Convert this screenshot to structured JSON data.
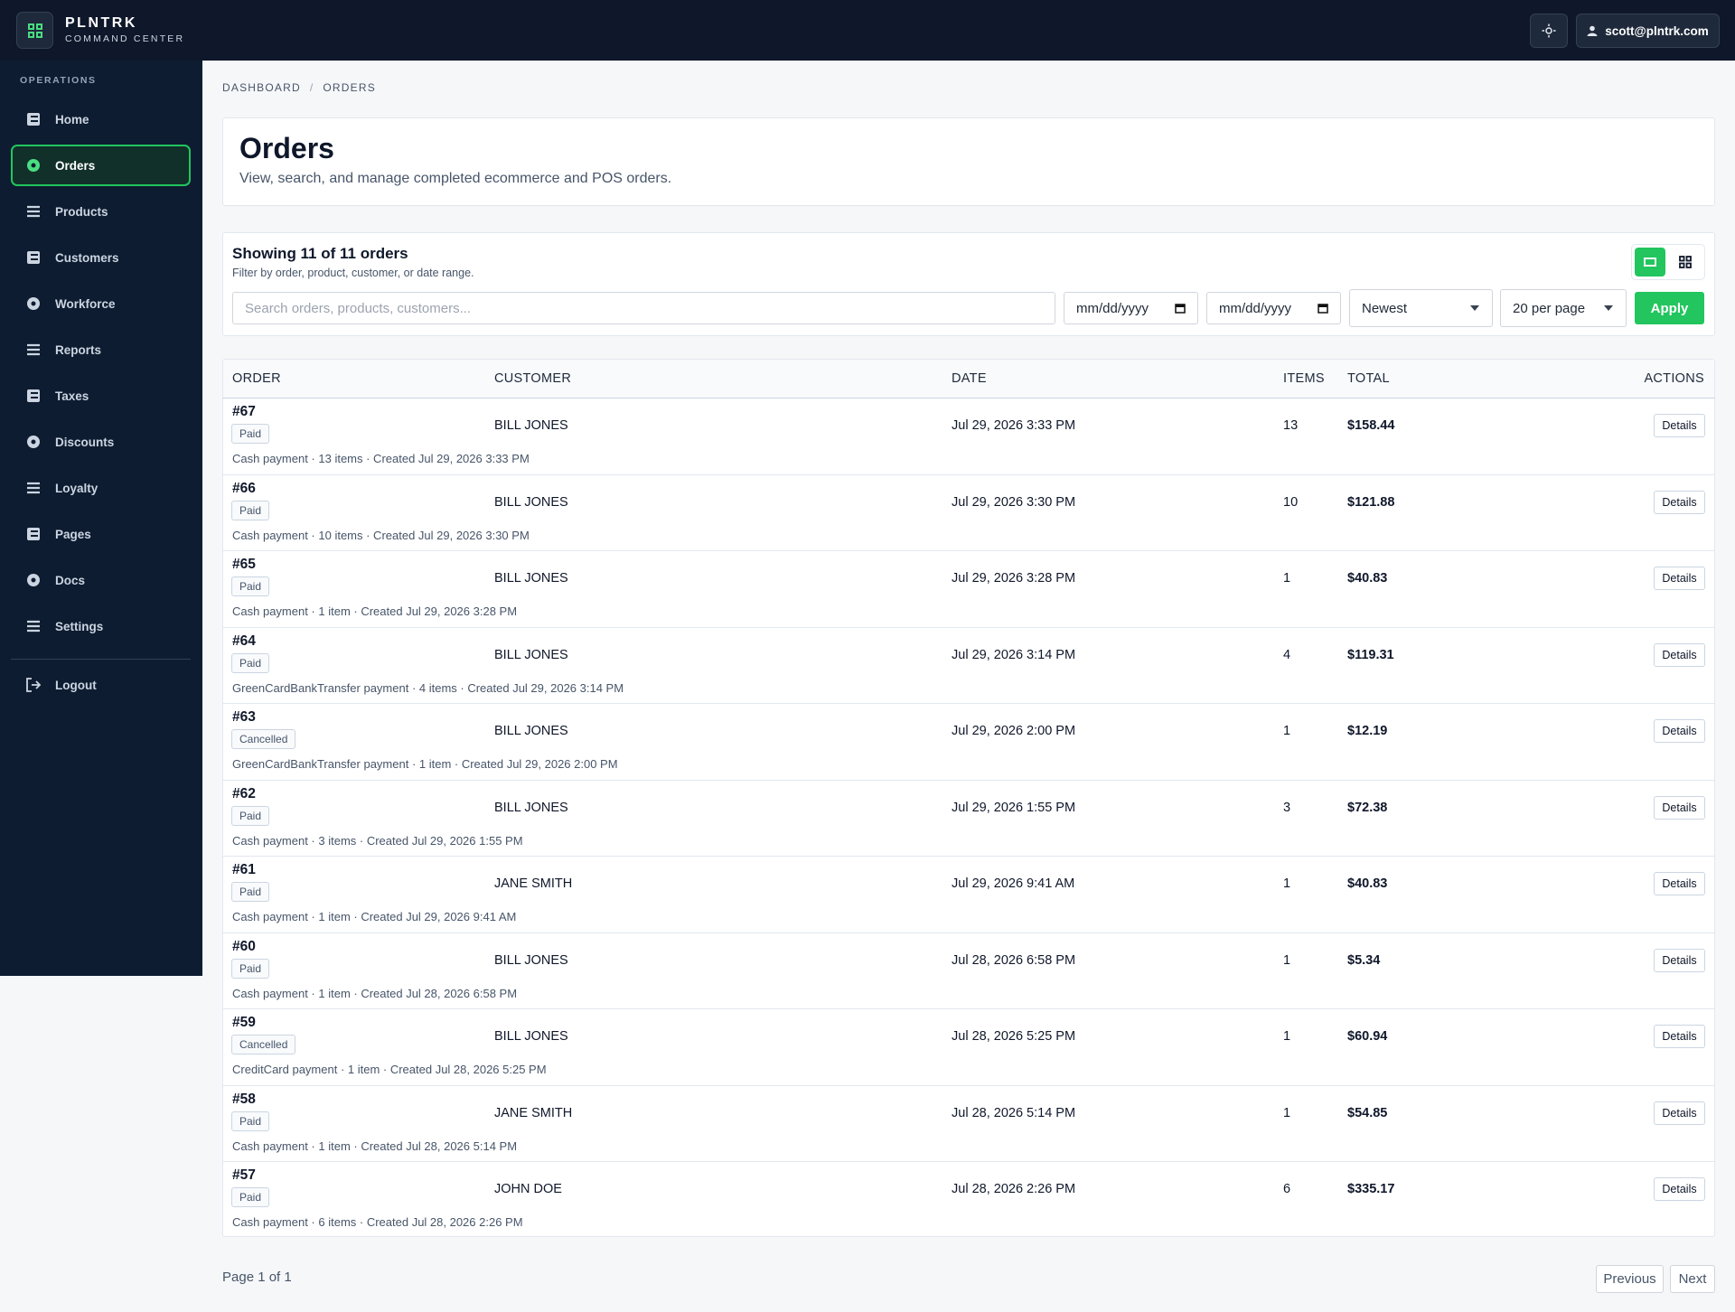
{
  "brand": {
    "name": "PLNTRK",
    "tagline": "COMMAND CENTER"
  },
  "user": "scott@plntrk.com",
  "nav": {
    "section": "OPERATIONS",
    "items": [
      "Home",
      "Orders",
      "Products",
      "Customers",
      "Workforce",
      "Reports",
      "Taxes",
      "Discounts",
      "Loyalty",
      "Pages",
      "Docs",
      "Settings"
    ],
    "logout": "Logout"
  },
  "breadcrumb": {
    "items": [
      "DASHBOARD",
      "ORDERS"
    ],
    "separator": "/"
  },
  "page": {
    "title": "Orders",
    "subtitle": "View, search, and manage completed ecommerce and POS orders."
  },
  "filters": {
    "summary": "Showing 11 of 11 orders",
    "hint": "Filter by order, product, customer, or date range.",
    "search_placeholder": "Search orders, products, customers...",
    "date_from": "mm/dd/yyyy",
    "date_to": "mm/dd/yyyy",
    "sort": "Newest",
    "per_page": "20 per page",
    "apply": "Apply"
  },
  "table": {
    "columns": [
      "ORDER",
      "CUSTOMER",
      "DATE",
      "ITEMS",
      "TOTAL",
      "ACTIONS"
    ],
    "rows": [
      {
        "order": "#67",
        "status": "Paid",
        "customer": "BILL JONES",
        "date": "Jul 29, 2026 3:33 PM",
        "items": 13,
        "total": "$158.44",
        "meta": "Cash payment · 13 items · Created Jul 29, 2026 3:33 PM",
        "action": "Details"
      },
      {
        "order": "#66",
        "status": "Paid",
        "customer": "BILL JONES",
        "date": "Jul 29, 2026 3:30 PM",
        "items": 10,
        "total": "$121.88",
        "meta": "Cash payment · 10 items · Created Jul 29, 2026 3:30 PM",
        "action": "Details"
      },
      {
        "order": "#65",
        "status": "Paid",
        "customer": "BILL JONES",
        "date": "Jul 29, 2026 3:28 PM",
        "items": 1,
        "total": "$40.83",
        "meta": "Cash payment · 1 item · Created Jul 29, 2026 3:28 PM",
        "action": "Details"
      },
      {
        "order": "#64",
        "status": "Paid",
        "customer": "BILL JONES",
        "date": "Jul 29, 2026 3:14 PM",
        "items": 4,
        "total": "$119.31",
        "meta": "GreenCardBankTransfer payment · 4 items · Created Jul 29, 2026 3:14 PM",
        "action": "Details"
      },
      {
        "order": "#63",
        "status": "Cancelled",
        "customer": "BILL JONES",
        "date": "Jul 29, 2026 2:00 PM",
        "items": 1,
        "total": "$12.19",
        "meta": "GreenCardBankTransfer payment · 1 item · Created Jul 29, 2026 2:00 PM",
        "action": "Details"
      },
      {
        "order": "#62",
        "status": "Paid",
        "customer": "BILL JONES",
        "date": "Jul 29, 2026 1:55 PM",
        "items": 3,
        "total": "$72.38",
        "meta": "Cash payment · 3 items · Created Jul 29, 2026 1:55 PM",
        "action": "Details"
      },
      {
        "order": "#61",
        "status": "Paid",
        "customer": "JANE SMITH",
        "date": "Jul 29, 2026 9:41 AM",
        "items": 1,
        "total": "$40.83",
        "meta": "Cash payment · 1 item · Created Jul 29, 2026 9:41 AM",
        "action": "Details"
      },
      {
        "order": "#60",
        "status": "Paid",
        "customer": "BILL JONES",
        "date": "Jul 28, 2026 6:58 PM",
        "items": 1,
        "total": "$5.34",
        "meta": "Cash payment · 1 item · Created Jul 28, 2026 6:58 PM",
        "action": "Details"
      },
      {
        "order": "#59",
        "status": "Cancelled",
        "customer": "BILL JONES",
        "date": "Jul 28, 2026 5:25 PM",
        "items": 1,
        "total": "$60.94",
        "meta": "CreditCard payment · 1 item · Created Jul 28, 2026 5:25 PM",
        "action": "Details"
      },
      {
        "order": "#58",
        "status": "Paid",
        "customer": "JANE SMITH",
        "date": "Jul 28, 2026 5:14 PM",
        "items": 1,
        "total": "$54.85",
        "meta": "Cash payment · 1 item · Created Jul 28, 2026 5:14 PM",
        "action": "Details"
      },
      {
        "order": "#57",
        "status": "Paid",
        "customer": "JOHN DOE",
        "date": "Jul 28, 2026 2:26 PM",
        "items": 6,
        "total": "$335.17",
        "meta": "Cash payment · 6 items · Created Jul 28, 2026 2:26 PM",
        "action": "Details"
      }
    ]
  },
  "pagination": {
    "status": "Page 1 of 1",
    "previous": "Previous",
    "next": "Next"
  }
}
